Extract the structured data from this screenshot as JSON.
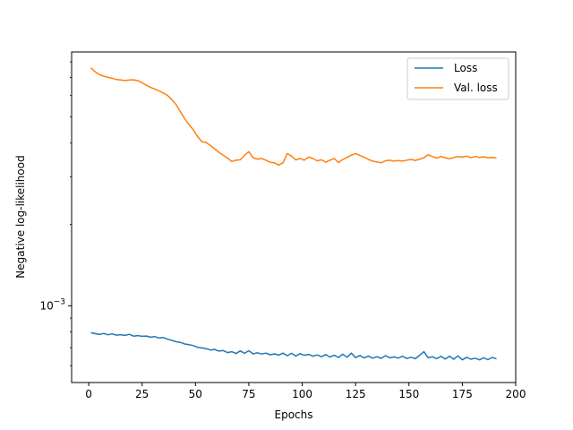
{
  "chart_data": {
    "type": "line",
    "title": "",
    "xlabel": "Epochs",
    "ylabel": "Negative log-likelihood",
    "xlim": [
      -8,
      200
    ],
    "xticks": [
      0,
      25,
      50,
      75,
      100,
      125,
      150,
      175,
      200
    ],
    "yscale": "log",
    "ylim": [
      0.00052,
      0.0087
    ],
    "yticks": [
      {
        "value": 0.001,
        "label": "10",
        "exponent": "−3"
      }
    ],
    "grid": false,
    "legend": "top-right",
    "series": [
      {
        "name": "Loss",
        "color": "#1f77b4",
        "x": [
          1,
          3,
          5,
          7,
          9,
          11,
          13,
          15,
          17,
          19,
          21,
          23,
          25,
          27,
          29,
          31,
          33,
          35,
          37,
          39,
          41,
          43,
          45,
          47,
          49,
          51,
          53,
          55,
          57,
          59,
          61,
          63,
          65,
          67,
          69,
          71,
          73,
          75,
          77,
          79,
          81,
          83,
          85,
          87,
          89,
          91,
          93,
          95,
          97,
          99,
          101,
          103,
          105,
          107,
          109,
          111,
          113,
          115,
          117,
          119,
          121,
          123,
          125,
          127,
          129,
          131,
          133,
          135,
          137,
          139,
          141,
          143,
          145,
          147,
          149,
          151,
          153,
          155,
          157,
          159,
          161,
          163,
          165,
          167,
          169,
          171,
          173,
          175,
          177,
          179,
          181,
          183,
          185,
          187,
          189,
          191
        ],
        "values": [
          0.000795,
          0.000789,
          0.000783,
          0.00079,
          0.000781,
          0.000787,
          0.000779,
          0.000782,
          0.000777,
          0.000784,
          0.000772,
          0.000776,
          0.000771,
          0.000773,
          0.000765,
          0.000769,
          0.00076,
          0.000763,
          0.000752,
          0.000745,
          0.000736,
          0.000732,
          0.000722,
          0.000718,
          0.000712,
          0.000702,
          0.000698,
          0.000694,
          0.000686,
          0.00069,
          0.00068,
          0.000683,
          0.000671,
          0.000676,
          0.000666,
          0.000681,
          0.000667,
          0.000682,
          0.000664,
          0.00067,
          0.000663,
          0.000668,
          0.000659,
          0.000664,
          0.000657,
          0.000668,
          0.000654,
          0.000667,
          0.000652,
          0.000665,
          0.000656,
          0.000661,
          0.000651,
          0.000658,
          0.000648,
          0.00066,
          0.000646,
          0.000656,
          0.000644,
          0.000662,
          0.000645,
          0.000668,
          0.000643,
          0.000655,
          0.000641,
          0.000652,
          0.00064,
          0.000648,
          0.000639,
          0.000654,
          0.000642,
          0.000647,
          0.00064,
          0.000651,
          0.000638,
          0.000645,
          0.000637,
          0.000656,
          0.000676,
          0.000642,
          0.000648,
          0.000637,
          0.00065,
          0.000635,
          0.000651,
          0.000634,
          0.000653,
          0.000631,
          0.000645,
          0.000634,
          0.00064,
          0.000631,
          0.000642,
          0.000632,
          0.000644,
          0.000636
        ]
      },
      {
        "name": "Val. loss",
        "color": "#ff7f0e",
        "x": [
          1,
          3,
          5,
          7,
          9,
          11,
          13,
          15,
          17,
          19,
          21,
          23,
          25,
          27,
          29,
          31,
          33,
          35,
          37,
          39,
          41,
          43,
          45,
          47,
          49,
          51,
          53,
          55,
          57,
          59,
          61,
          63,
          65,
          67,
          69,
          71,
          73,
          75,
          77,
          79,
          81,
          83,
          85,
          87,
          89,
          91,
          93,
          95,
          97,
          99,
          101,
          103,
          105,
          107,
          109,
          111,
          113,
          115,
          117,
          119,
          121,
          123,
          125,
          127,
          129,
          131,
          133,
          135,
          137,
          139,
          141,
          143,
          145,
          147,
          149,
          151,
          153,
          155,
          157,
          159,
          161,
          163,
          165,
          167,
          169,
          171,
          173,
          175,
          177,
          179,
          181,
          183,
          185,
          187,
          189,
          191
        ],
        "values": [
          0.0076,
          0.00735,
          0.00717,
          0.00708,
          0.00701,
          0.00695,
          0.00688,
          0.00685,
          0.00682,
          0.00685,
          0.00686,
          0.00681,
          0.00669,
          0.00655,
          0.00643,
          0.00634,
          0.00624,
          0.00613,
          0.006,
          0.00579,
          0.00555,
          0.00522,
          0.00492,
          0.00468,
          0.00448,
          0.00423,
          0.00405,
          0.00402,
          0.00392,
          0.00381,
          0.0037,
          0.00361,
          0.00352,
          0.00342,
          0.00346,
          0.00347,
          0.00361,
          0.00372,
          0.00353,
          0.00349,
          0.00351,
          0.00346,
          0.0034,
          0.00338,
          0.00332,
          0.00338,
          0.00366,
          0.00358,
          0.00347,
          0.00351,
          0.00346,
          0.00355,
          0.00351,
          0.00344,
          0.00347,
          0.0034,
          0.00346,
          0.00351,
          0.00339,
          0.00348,
          0.00354,
          0.00361,
          0.00366,
          0.0036,
          0.00355,
          0.00348,
          0.00343,
          0.00341,
          0.00338,
          0.00344,
          0.00346,
          0.00343,
          0.00345,
          0.00343,
          0.00346,
          0.00348,
          0.00345,
          0.00349,
          0.00353,
          0.00362,
          0.00357,
          0.00352,
          0.00357,
          0.00353,
          0.0035,
          0.00354,
          0.00357,
          0.00355,
          0.00358,
          0.00353,
          0.00357,
          0.00354,
          0.00356,
          0.00353,
          0.00354,
          0.00352
        ]
      }
    ]
  }
}
